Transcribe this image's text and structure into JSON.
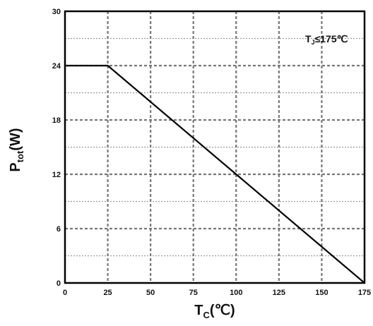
{
  "chart_data": {
    "type": "line",
    "title": "",
    "xlabel": {
      "main": "T",
      "sub": "C",
      "rest": "(℃)"
    },
    "ylabel": {
      "main": "P",
      "sub": "tot",
      "rest": "(W)"
    },
    "annotation": {
      "main": "T",
      "sub": "J",
      "rest": "≤175℃"
    },
    "xlim": [
      0,
      175
    ],
    "ylim": [
      0,
      30
    ],
    "x_ticks": [
      "0",
      "25",
      "50",
      "75",
      "100",
      "125",
      "150",
      "175"
    ],
    "y_ticks": [
      "0",
      "6",
      "12",
      "18",
      "24",
      "30"
    ],
    "x_tick_values": [
      0,
      25,
      50,
      75,
      100,
      125,
      150,
      175
    ],
    "y_tick_values": [
      0,
      6,
      12,
      18,
      24,
      30
    ],
    "y_minor_grid": [
      3,
      9,
      15,
      21,
      27
    ],
    "grid": true,
    "series": [
      {
        "x": [
          0,
          25,
          175
        ],
        "y": [
          24,
          24,
          0
        ]
      }
    ],
    "colors": {
      "line": "#000000",
      "major_grid": "#777777",
      "minor_grid": "#9a9a9a",
      "frame": "#000000"
    }
  }
}
